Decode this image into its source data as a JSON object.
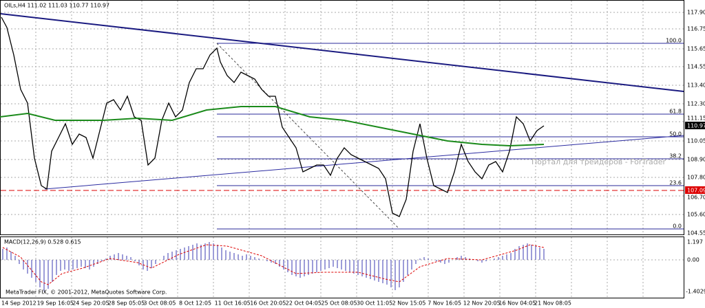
{
  "header": {
    "title": "OILs,H4  111.02 111.03 110.77 110.97"
  },
  "price_axis": [
    "117.90",
    "116.75",
    "115.65",
    "114.55",
    "113.40",
    "112.30",
    "111.15",
    "110.05",
    "108.90",
    "107.80",
    "106.70",
    "105.60",
    "104.55"
  ],
  "price_markers": {
    "current": "110.97",
    "level": "107.09"
  },
  "fib_levels": [
    "100.0",
    "61.8",
    "50.0",
    "38.2",
    "23.6",
    "0.0"
  ],
  "macd": {
    "label": "MACD(12,26,9) 0.528 0.615",
    "axis": [
      "1.197",
      "0.00",
      "-1.4029"
    ]
  },
  "copyright": "MetaTrader FIX, © 2001-2012, MetaQuotes Software Corp.",
  "watermark": "Портал для трейдеров - ForTrader",
  "time_axis": [
    "14 Sep 2012",
    "19 Sep 16:05",
    "24 Sep 20:05",
    "28 Sep 05:05",
    "3 Oct 08:05",
    "8 Oct 12:05",
    "11 Oct 16:05",
    "16 Oct 20:05",
    "22 Oct 04:05",
    "25 Oct 08:05",
    "30 Oct 11:05",
    "2 Nov 15:05",
    "7 Nov 16:05",
    "12 Nov 20:05",
    "16 Nov 04:05",
    "21 Nov 08:05"
  ]
}
